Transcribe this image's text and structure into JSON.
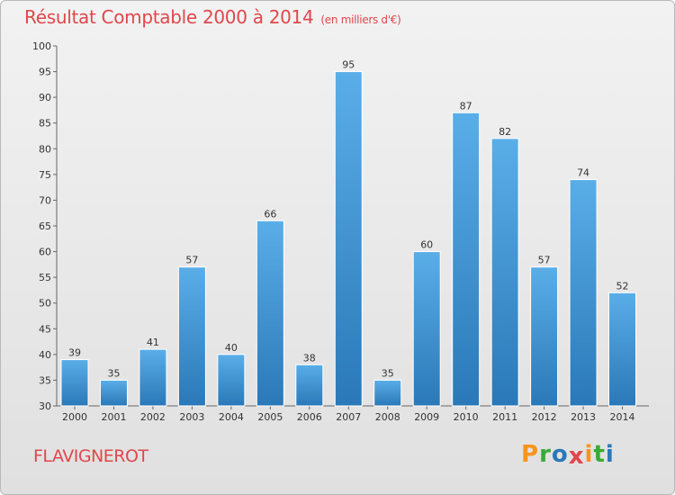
{
  "header": {
    "title": "Résultat Comptable 2000 à 2014",
    "subtitle": "(en milliers d'€)"
  },
  "footer": {
    "commune": "FLAVIGNEROT",
    "logo": "Proxiti"
  },
  "colors": {
    "title": "#e0474c",
    "bar_top": "#5aaee8",
    "bar_bottom": "#2a78b8",
    "logo_letters": [
      "#f7941d",
      "#3aaa35",
      "#2a78b8",
      "#e0474c",
      "#f7941d",
      "#3aaa35",
      "#2a78b8"
    ]
  },
  "chart_data": {
    "type": "bar",
    "title": "Résultat Comptable 2000 à 2014",
    "subtitle": "(en milliers d'€)",
    "categories": [
      "2000",
      "2001",
      "2002",
      "2003",
      "2004",
      "2005",
      "2006",
      "2007",
      "2008",
      "2009",
      "2010",
      "2011",
      "2012",
      "2013",
      "2014"
    ],
    "values": [
      39,
      35,
      41,
      57,
      40,
      66,
      38,
      95,
      35,
      60,
      87,
      82,
      57,
      74,
      52
    ],
    "ylim": [
      30,
      100
    ],
    "yticks": [
      30,
      35,
      40,
      45,
      50,
      55,
      60,
      65,
      70,
      75,
      80,
      85,
      90,
      95,
      100
    ],
    "xlabel": "",
    "ylabel": "",
    "grid": false
  }
}
